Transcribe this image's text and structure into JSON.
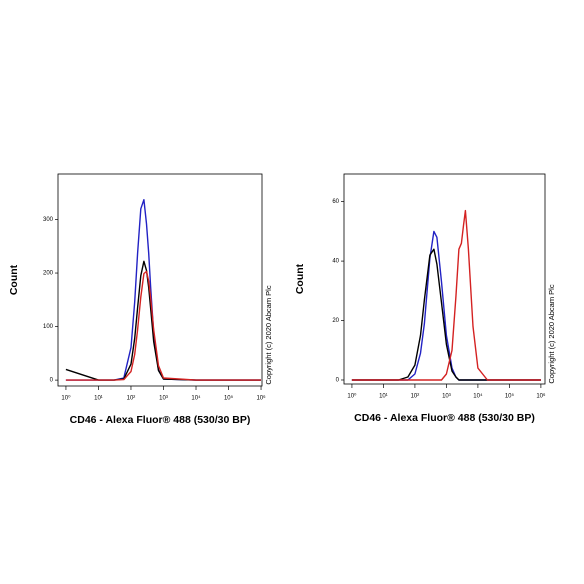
{
  "chart_data": [
    {
      "type": "line",
      "xlabel": "CD46 - Alexa Fluor® 488 (530/30 BP)",
      "ylabel": "Count",
      "note": "Copyright (c) 2020 Abcam Plc",
      "log_x": true,
      "xlim": [
        0.57,
        1070000
      ],
      "ylim": [
        -11,
        385
      ],
      "xticks": [
        {
          "value": 1,
          "label": "10⁰"
        },
        {
          "value": 10,
          "label": "10¹"
        },
        {
          "value": 100,
          "label": "10²"
        },
        {
          "value": 1000,
          "label": "10³"
        },
        {
          "value": 10000,
          "label": "10⁴"
        },
        {
          "value": 100000,
          "label": "10⁵"
        },
        {
          "value": 1000000,
          "label": "10⁶"
        }
      ],
      "yticks": [
        0,
        100,
        200,
        300
      ],
      "x": [
        1,
        10,
        30,
        60,
        100,
        130,
        160,
        200,
        250,
        300,
        350,
        400,
        500,
        700,
        1000,
        10000,
        1000000
      ],
      "series": [
        {
          "color": "#2222c4",
          "values": [
            0,
            0,
            0,
            4,
            61,
            146,
            237,
            320,
            337,
            292,
            237,
            175,
            87,
            19,
            2,
            0,
            0
          ]
        },
        {
          "color": "#000000",
          "values": [
            20,
            0,
            0,
            2,
            30,
            78,
            135,
            195,
            222,
            205,
            173,
            135,
            72,
            18,
            2,
            0,
            0
          ]
        },
        {
          "color": "#d42222",
          "values": [
            0,
            0,
            0,
            1,
            16,
            48,
            94,
            155,
            199,
            203,
            185,
            155,
            94,
            27,
            4,
            0,
            0
          ]
        }
      ]
    },
    {
      "type": "line",
      "xlabel": "CD46 - Alexa Fluor® 488 (530/30 BP)",
      "ylabel": "Count",
      "note": "Copyright (c) 2020 Abcam Plc",
      "log_x": true,
      "xlim": [
        0.56,
        1350000
      ],
      "ylim": [
        -1.35,
        69.3
      ],
      "xticks": [
        {
          "value": 1,
          "label": "10⁰"
        },
        {
          "value": 10,
          "label": "10¹"
        },
        {
          "value": 100,
          "label": "10²"
        },
        {
          "value": 1000,
          "label": "10³"
        },
        {
          "value": 10000,
          "label": "10⁴"
        },
        {
          "value": 100000,
          "label": "10⁵"
        },
        {
          "value": 1000000,
          "label": "10⁶"
        }
      ],
      "yticks": [
        0,
        20,
        40,
        60
      ],
      "x": [
        1,
        10,
        30,
        60,
        100,
        150,
        200,
        300,
        400,
        500,
        700,
        1000,
        1500,
        2000,
        2500,
        3000,
        3500,
        4000,
        5000,
        7000,
        10000,
        20000,
        1000000
      ],
      "series": [
        {
          "color": "#2222c4",
          "values": [
            0,
            0,
            0,
            0,
            2,
            9,
            19,
            41,
            50,
            48,
            33,
            15,
            4,
            1,
            0,
            0,
            0,
            0,
            0,
            0,
            0,
            0,
            0
          ]
        },
        {
          "color": "#000000",
          "values": [
            0,
            0,
            0,
            1,
            5,
            15,
            27,
            42,
            44,
            39,
            26,
            12,
            3,
            1,
            0,
            0,
            0,
            0,
            0,
            0,
            0,
            0,
            0
          ]
        },
        {
          "color": "#d42222",
          "values": [
            0,
            0,
            0,
            0,
            0,
            0,
            0,
            0,
            0,
            0,
            0,
            2,
            10,
            28,
            44,
            46,
            52,
            57,
            44,
            18,
            4,
            0,
            0
          ]
        }
      ]
    }
  ]
}
